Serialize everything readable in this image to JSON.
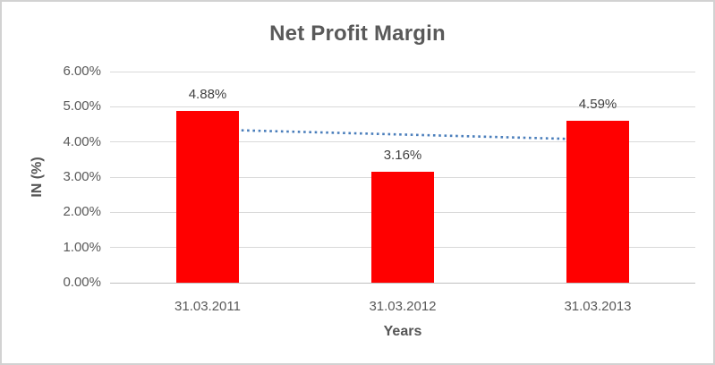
{
  "chart_data": {
    "type": "bar",
    "title": "Net Profit Margin",
    "xlabel": "Years",
    "ylabel": "IN (%)",
    "categories": [
      "31.03.2011",
      "31.03.2012",
      "31.03.2013"
    ],
    "series": [
      {
        "name": "Net Profit Margin",
        "values": [
          4.88,
          3.16,
          4.59
        ]
      }
    ],
    "data_labels": [
      "4.88%",
      "3.16%",
      "4.59%"
    ],
    "y_ticks": [
      "6.00%",
      "5.00%",
      "4.00%",
      "3.00%",
      "2.00%",
      "1.00%",
      "0.00%"
    ],
    "ylim": [
      0,
      6
    ],
    "grid": true,
    "legend": "none",
    "bar_color": "#FF0000",
    "trendline": {
      "type": "linear",
      "style": "dotted",
      "color": "#4A7EBB",
      "start_value": 4.355,
      "end_value": 4.065
    }
  }
}
